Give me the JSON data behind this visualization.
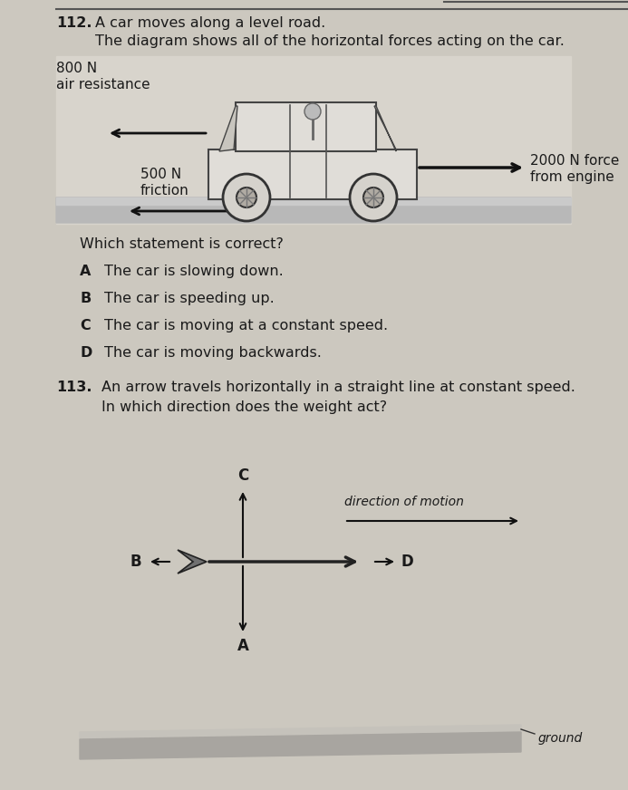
{
  "bg_color": "#ccc8bf",
  "q112_number": "112.",
  "q112_line1": "A car moves along a level road.",
  "q112_line2": "The diagram shows all of the horizontal forces acting on the car.",
  "force_left1_label": "800 N",
  "force_left1_sublabel": "air resistance",
  "force_left2_label": "500 N",
  "force_left2_sublabel": "friction",
  "force_right_label": "2000 N force",
  "force_right_sublabel": "from engine",
  "which_statement": "Which statement is correct?",
  "optA_letter": "A",
  "optA_text": "The car is slowing down.",
  "optB_letter": "B",
  "optB_text": "The car is speeding up.",
  "optC_letter": "C",
  "optC_text": "The car is moving at a constant speed.",
  "optD_letter": "D",
  "optD_text": "The car is moving backwards.",
  "q113_number": "113.",
  "q113_line1": "An arrow travels horizontally in a straight line at constant speed.",
  "q113_line2": "In which direction does the weight act?",
  "label_A": "A",
  "label_B": "B",
  "label_C": "C",
  "label_D": "D",
  "dir_of_motion": "direction of motion",
  "ground_label": "ground",
  "text_color": "#1a1a1a",
  "arrow_color": "#111111",
  "line_color": "#555555"
}
